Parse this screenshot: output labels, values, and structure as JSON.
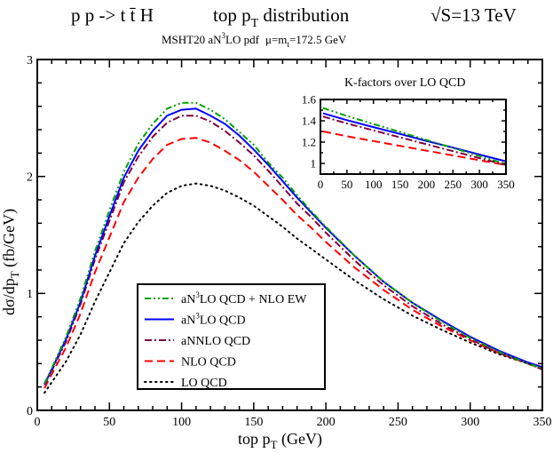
{
  "header": {
    "process": "p p -> t t̄ H",
    "dist_pre": "top p",
    "dist_sub": "T",
    "dist_post": " distribution",
    "energy": "√S=13 TeV",
    "pdf_pre": "MSHT20 aN",
    "pdf_sup": "3",
    "pdf_post": "LO pdf",
    "scale_pre": "μ=m",
    "scale_sub": "t",
    "scale_post": "=172.5 GeV"
  },
  "chart_data": [
    {
      "type": "line",
      "xlabel_pre": "top p",
      "xlabel_sub": "T",
      "xlabel_post": " (GeV)",
      "ylabel_pre": "dσ/dp",
      "ylabel_sub": "T",
      "ylabel_post": "  (fb/GeV)",
      "xlim": [
        0,
        350
      ],
      "ylim": [
        0,
        3
      ],
      "xticks": [
        0,
        50,
        100,
        150,
        200,
        250,
        300,
        350
      ],
      "yticks": [
        0,
        1,
        2,
        3
      ],
      "grid": false,
      "legend_position": "lower-center",
      "x": [
        5,
        10,
        20,
        30,
        40,
        50,
        60,
        70,
        80,
        90,
        100,
        110,
        120,
        130,
        140,
        150,
        160,
        170,
        180,
        190,
        200,
        220,
        240,
        260,
        280,
        300,
        320,
        340,
        350
      ],
      "series": [
        {
          "name": "aN3LO QCD + NLO EW",
          "label_pre": "aN",
          "label_sup": "3",
          "label_post": "LO QCD + NLO EW",
          "color": "#00a000",
          "style": "dash-dot-dot",
          "values": [
            0.23,
            0.36,
            0.63,
            0.96,
            1.36,
            1.71,
            2.04,
            2.28,
            2.45,
            2.58,
            2.63,
            2.63,
            2.57,
            2.49,
            2.38,
            2.27,
            2.12,
            1.99,
            1.84,
            1.7,
            1.57,
            1.32,
            1.1,
            0.92,
            0.76,
            0.62,
            0.5,
            0.4,
            0.36
          ]
        },
        {
          "name": "aN3LO QCD",
          "label_pre": "aN",
          "label_sup": "3",
          "label_post": "LO QCD",
          "color": "#0000ff",
          "style": "solid",
          "values": [
            0.22,
            0.35,
            0.61,
            0.93,
            1.32,
            1.66,
            1.99,
            2.22,
            2.39,
            2.52,
            2.57,
            2.58,
            2.52,
            2.45,
            2.35,
            2.23,
            2.1,
            1.96,
            1.82,
            1.69,
            1.56,
            1.32,
            1.1,
            0.92,
            0.77,
            0.63,
            0.51,
            0.41,
            0.37
          ]
        },
        {
          "name": "aNNLO QCD",
          "label_pre": "aNNLO QCD",
          "label_sup": "",
          "label_post": "",
          "color": "#800040",
          "style": "dash-dot",
          "values": [
            0.22,
            0.34,
            0.59,
            0.91,
            1.29,
            1.62,
            1.95,
            2.17,
            2.34,
            2.46,
            2.52,
            2.52,
            2.47,
            2.39,
            2.29,
            2.18,
            2.05,
            1.91,
            1.77,
            1.65,
            1.52,
            1.28,
            1.07,
            0.89,
            0.74,
            0.61,
            0.49,
            0.4,
            0.35
          ]
        },
        {
          "name": "NLO QCD",
          "label_pre": "NLO QCD",
          "label_sup": "",
          "label_post": "",
          "color": "#ff0000",
          "style": "dashed",
          "values": [
            0.19,
            0.31,
            0.54,
            0.83,
            1.18,
            1.48,
            1.78,
            1.99,
            2.15,
            2.27,
            2.32,
            2.33,
            2.29,
            2.22,
            2.14,
            2.04,
            1.92,
            1.8,
            1.67,
            1.56,
            1.44,
            1.22,
            1.03,
            0.86,
            0.72,
            0.6,
            0.49,
            0.4,
            0.35
          ]
        },
        {
          "name": "LO QCD",
          "label_pre": "LO QCD",
          "label_sup": "",
          "label_post": "",
          "color": "#000000",
          "style": "dotted",
          "values": [
            0.15,
            0.24,
            0.42,
            0.65,
            0.93,
            1.18,
            1.43,
            1.61,
            1.75,
            1.86,
            1.92,
            1.94,
            1.92,
            1.88,
            1.82,
            1.75,
            1.66,
            1.57,
            1.47,
            1.38,
            1.29,
            1.11,
            0.95,
            0.81,
            0.69,
            0.58,
            0.48,
            0.4,
            0.36
          ]
        }
      ]
    },
    {
      "type": "line",
      "title": "K-factors over LO QCD",
      "xlim": [
        0,
        350
      ],
      "ylim": [
        0.9,
        1.6
      ],
      "xticks": [
        0,
        50,
        100,
        150,
        200,
        250,
        300,
        350
      ],
      "yticks": [
        1,
        1.2,
        1.4,
        1.6
      ],
      "ytick_labels": [
        "1",
        "1.2",
        "1.4",
        "1.6"
      ],
      "grid": false,
      "x": [
        5,
        50,
        100,
        150,
        200,
        250,
        300,
        350
      ],
      "series": [
        {
          "ref": "aN3LO QCD + NLO EW",
          "color": "#00a000",
          "style": "dash-dot-dot",
          "values": [
            1.52,
            1.445,
            1.37,
            1.295,
            1.22,
            1.145,
            1.07,
            0.995
          ]
        },
        {
          "ref": "aN3LO QCD",
          "color": "#0000ff",
          "style": "solid",
          "values": [
            1.47,
            1.406,
            1.341,
            1.277,
            1.212,
            1.148,
            1.083,
            1.019
          ]
        },
        {
          "ref": "aNNLO QCD",
          "color": "#800040",
          "style": "dash-dot",
          "values": [
            1.44,
            1.375,
            1.31,
            1.245,
            1.18,
            1.115,
            1.05,
            0.985
          ]
        },
        {
          "ref": "NLO QCD",
          "color": "#ff0000",
          "style": "dashed",
          "values": [
            1.3,
            1.255,
            1.21,
            1.165,
            1.12,
            1.075,
            1.03,
            0.985
          ]
        }
      ]
    }
  ]
}
